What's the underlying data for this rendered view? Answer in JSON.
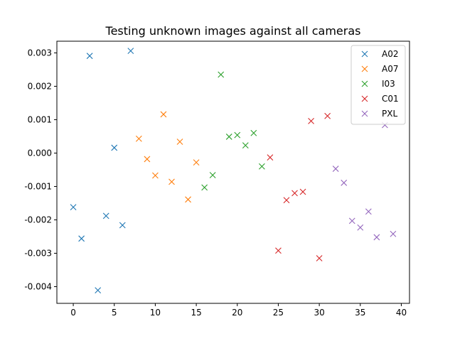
{
  "chart_data": {
    "type": "scatter",
    "title": "Testing unknown images against all cameras",
    "xlabel": "",
    "ylabel": "",
    "xlim": [
      -2,
      41
    ],
    "ylim": [
      -0.0045,
      0.00335
    ],
    "xticks": [
      0,
      5,
      10,
      15,
      20,
      25,
      30,
      35,
      40
    ],
    "xtick_labels": [
      "0",
      "5",
      "10",
      "15",
      "20",
      "25",
      "30",
      "35",
      "40"
    ],
    "yticks": [
      -0.004,
      -0.003,
      -0.002,
      -0.001,
      0.0,
      0.001,
      0.002,
      0.003
    ],
    "ytick_labels": [
      "-0.004",
      "-0.003",
      "-0.002",
      "-0.001",
      "0.000",
      "0.001",
      "0.002",
      "0.003"
    ],
    "grid": false,
    "legend_position": "top-right",
    "marker": "x",
    "series": [
      {
        "name": "A02",
        "color": "#1f77b4",
        "x": [
          0,
          1,
          2,
          3,
          4,
          5,
          6,
          7
        ],
        "y": [
          -0.00162,
          -0.00256,
          0.00291,
          -0.00411,
          -0.00188,
          0.00016,
          -0.00216,
          0.00306
        ]
      },
      {
        "name": "A07",
        "color": "#ff7f0e",
        "x": [
          8,
          9,
          10,
          11,
          12,
          13,
          14,
          15
        ],
        "y": [
          0.00043,
          -0.00018,
          -0.00067,
          0.00116,
          -0.00086,
          0.00034,
          -0.00139,
          -0.00028
        ]
      },
      {
        "name": "I03",
        "color": "#2ca02c",
        "x": [
          16,
          17,
          18,
          19,
          20,
          21,
          22,
          23
        ],
        "y": [
          -0.00103,
          -0.00066,
          0.00235,
          0.00049,
          0.00054,
          0.00023,
          0.0006,
          -0.0004
        ]
      },
      {
        "name": "C01",
        "color": "#d62728",
        "x": [
          24,
          25,
          26,
          27,
          28,
          29,
          30,
          31
        ],
        "y": [
          -0.00013,
          -0.00292,
          -0.00141,
          -0.0012,
          -0.00116,
          0.00096,
          -0.00315,
          0.00111
        ]
      },
      {
        "name": "PXL",
        "color": "#9467bd",
        "x": [
          32,
          33,
          34,
          35,
          36,
          37,
          38,
          39
        ],
        "y": [
          -0.00047,
          -0.00089,
          -0.00203,
          -0.00223,
          -0.00175,
          -0.00252,
          0.00084,
          -0.00242
        ]
      }
    ]
  }
}
